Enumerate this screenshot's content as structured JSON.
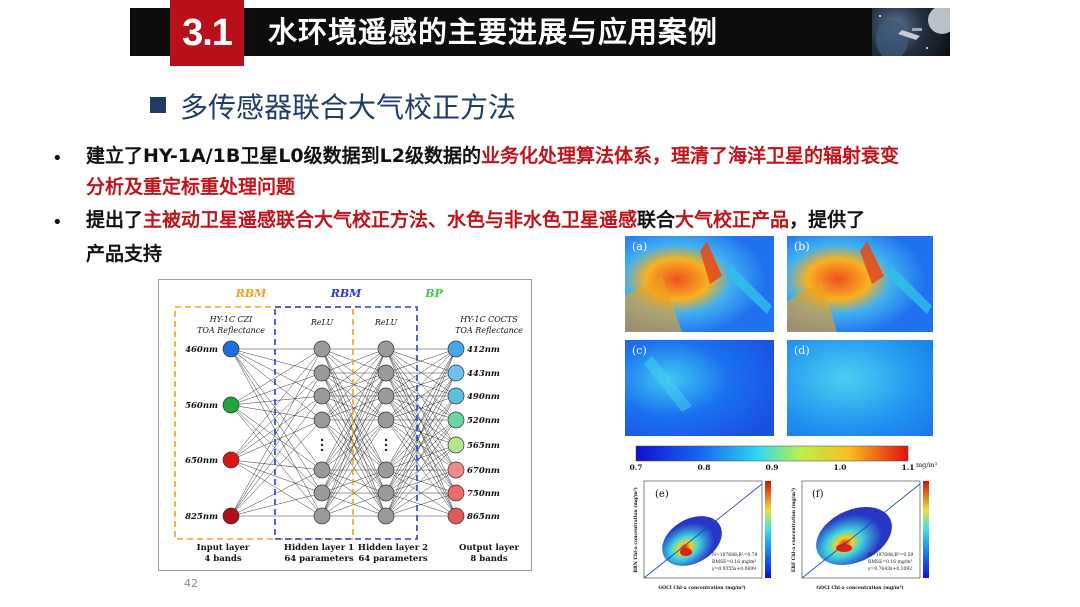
{
  "header": {
    "section_number": "3.1",
    "title": "水环境遥感的主要进展与应用案例"
  },
  "subtitle": "多传感器联合大气校正方法",
  "bullets": [
    {
      "line1_a": "建立了HY-1A/1B卫星L0级数据到L2级数据的",
      "line1_b": "业务化处理算法体系，理清了海洋卫星的辐射衰变",
      "line2": "分析及重定标重处理问题"
    },
    {
      "line1_a": "提出了",
      "line1_b": "主被动卫星遥感联合大气校正方法、水色与非水色卫星遥感",
      "line1_c": "联合",
      "line1_d": "大气校正产品",
      "line1_e": "，提供了",
      "line2": "产品支持"
    }
  ],
  "network": {
    "group_labels": [
      "RBM",
      "RBM",
      "BP"
    ],
    "input_header": [
      "HY-1C CZI",
      "TOA Reflectance"
    ],
    "hidden1_header": "ReLU",
    "hidden2_header": "ReLU",
    "output_header": [
      "HY-1C COCTS",
      "TOA Reflectance"
    ],
    "input_bands": [
      "460nm",
      "560nm",
      "650nm",
      "825nm"
    ],
    "output_bands": [
      "412nm",
      "443nm",
      "490nm",
      "520nm",
      "565nm",
      "670nm",
      "750nm",
      "865nm"
    ],
    "footer_labels": [
      [
        "Input layer",
        "4 bands"
      ],
      [
        "Hidden layer 1",
        "64 parameters"
      ],
      [
        "Hidden layer 2",
        "64 parameters"
      ],
      [
        "Output layer",
        "8 bands"
      ]
    ],
    "colors": {
      "input": [
        "#1e6fd8",
        "#1fa33a",
        "#d81818",
        "#b0101a"
      ],
      "output": [
        "#4aa6e6",
        "#6cc4ec",
        "#5bc0de",
        "#6dd6a0",
        "#b9e48e",
        "#f08a8a",
        "#e86a6a",
        "#e05a5a"
      ],
      "rbm1": "#f0a020",
      "rbm2": "#2a3ad8",
      "bp": "#3cc840"
    }
  },
  "figure": {
    "panel_labels": [
      "(a)",
      "(b)",
      "(c)",
      "(d)",
      "(e)",
      "(f)"
    ],
    "colorbar_ticks": [
      "0.7",
      "0.8",
      "0.9",
      "1.0",
      "1.1"
    ],
    "colorbar_unit": "mg/m³",
    "scatter_e": {
      "xlabel": "GOCI Chl-a concentration (mg/m³)",
      "ylabel": "BRN Chl-a concentration (mg/m³)",
      "stats": [
        "N=197688;R²=0.78",
        "RMSE=0.16 mg/m³",
        "y=0.9355x+0.0699"
      ]
    },
    "scatter_f": {
      "xlabel": "GOCI Chl-a concentration (mg/m³)",
      "ylabel": "ERF Chl-a concentration (mg/m³)",
      "stats": [
        "N=197688;R²=0.59",
        "RMSE=0.16 mg/m³",
        "y=0.7643x+0.1092"
      ]
    }
  },
  "page_number": "42"
}
